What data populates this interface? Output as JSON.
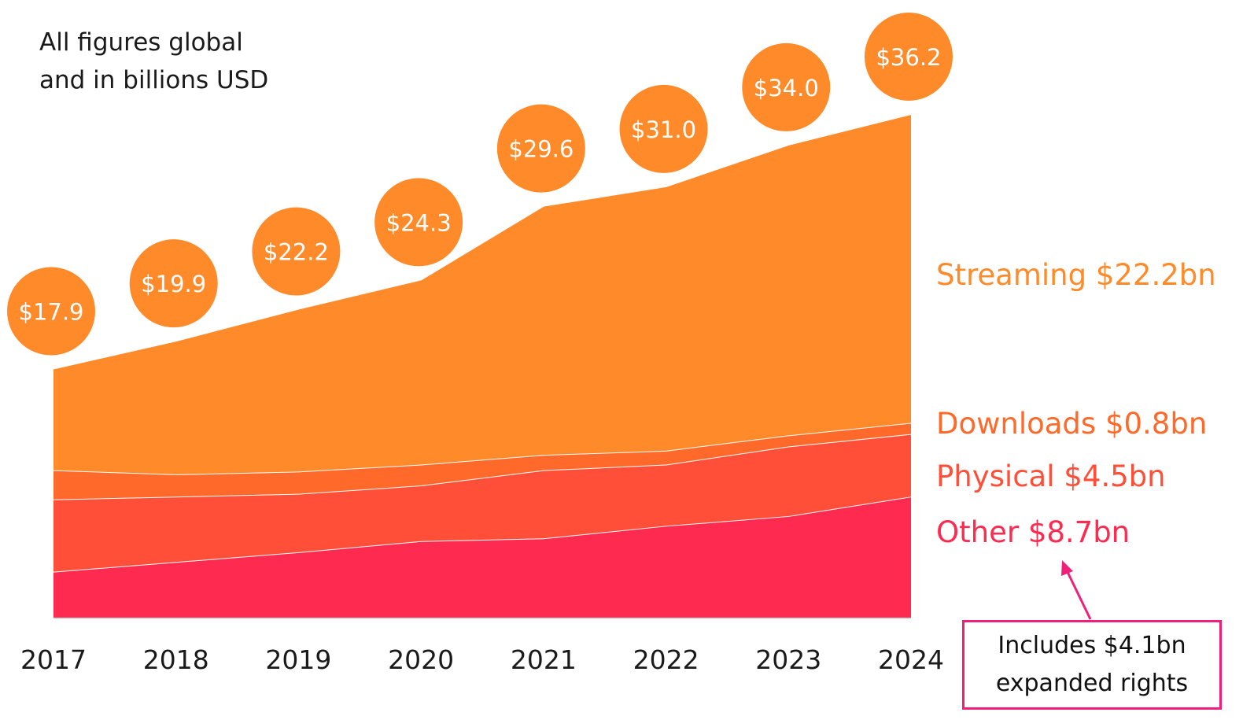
{
  "note": [
    "All figures global",
    "and in billions USD"
  ],
  "chart_data": {
    "type": "area",
    "stacked": true,
    "x": [
      "2017",
      "2018",
      "2019",
      "2020",
      "2021",
      "2022",
      "2023",
      "2024"
    ],
    "series": [
      {
        "name": "Other",
        "values": [
          3.3,
          4.0,
          4.7,
          5.5,
          5.7,
          6.6,
          7.3,
          8.7
        ],
        "color": "#FF2A4F"
      },
      {
        "name": "Physical",
        "values": [
          5.2,
          4.7,
          4.2,
          4.0,
          4.9,
          4.4,
          5.0,
          4.5
        ],
        "color": "#FF4F38"
      },
      {
        "name": "Downloads",
        "values": [
          2.1,
          1.6,
          1.6,
          1.5,
          1.1,
          1.0,
          0.8,
          0.8
        ],
        "color": "#FF6A2A"
      },
      {
        "name": "Streaming",
        "values": [
          7.3,
          9.6,
          11.7,
          13.3,
          17.9,
          19.0,
          20.9,
          22.2
        ],
        "color": "#FF8A2A"
      }
    ],
    "totals": [
      "$17.9",
      "$19.9",
      "$22.2",
      "$24.3",
      "$29.6",
      "$31.0",
      "$34.0",
      "$36.2"
    ],
    "total_bubble_color": "#FF8A2A",
    "ylim": [
      0,
      36.2
    ],
    "grid": false
  },
  "labels": [
    {
      "text": "Streaming $22.2bn",
      "color": "#FF8A2A"
    },
    {
      "text": "Downloads $0.8bn",
      "color": "#FF6A2A"
    },
    {
      "text": "Physical $4.5bn",
      "color": "#FF4F38"
    },
    {
      "text": "Other $8.7bn",
      "color": "#FF2A4F"
    }
  ],
  "callout": [
    "Includes $4.1bn",
    "expanded rights"
  ],
  "callout_color": "#F0207A"
}
